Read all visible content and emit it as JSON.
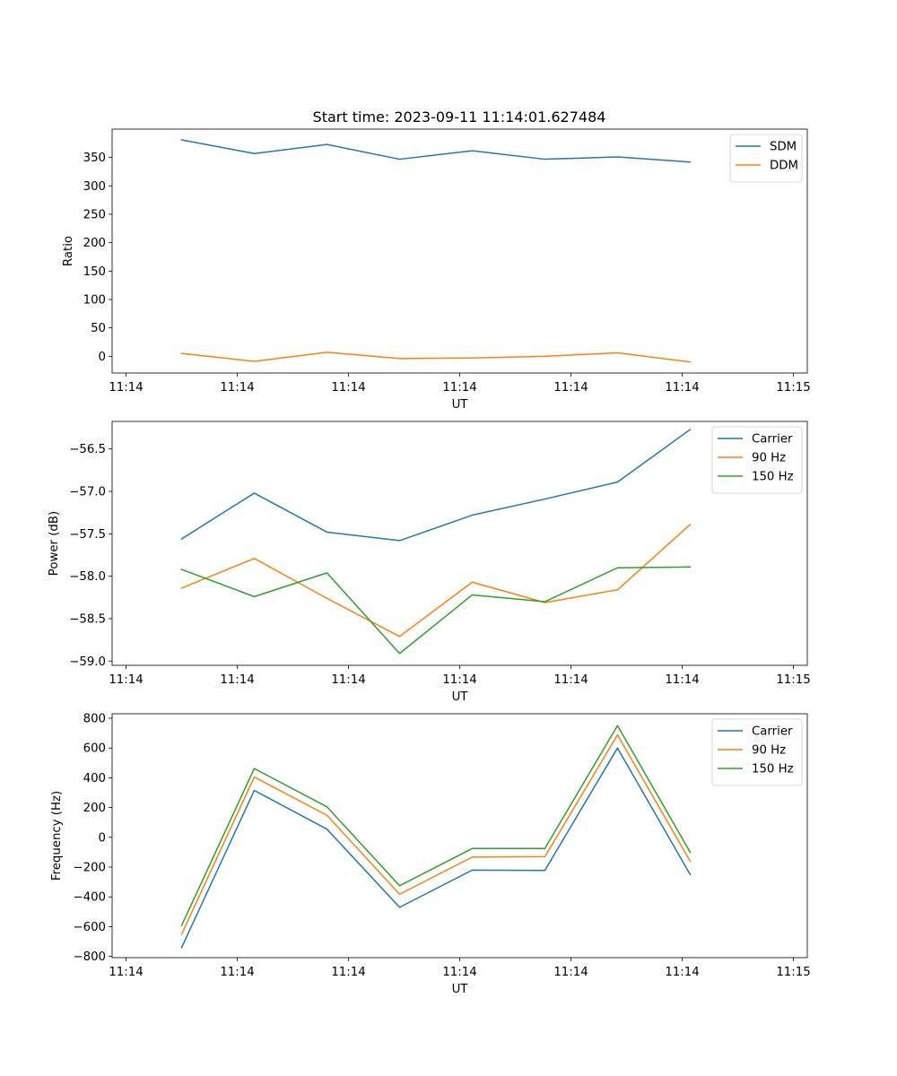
{
  "chart_data": [
    {
      "type": "line",
      "title": "Start time: 2023-09-11 11:14:01.627484",
      "xlabel": "UT",
      "ylabel": "Ratio",
      "xticks": [
        "11:14",
        "11:14",
        "11:14",
        "11:14",
        "11:14",
        "11:14",
        "11:15"
      ],
      "yticks": [
        0,
        50,
        100,
        150,
        200,
        250,
        300,
        350
      ],
      "ylim": [
        -29.5,
        400
      ],
      "legend_position": "upper-right",
      "x": [
        1,
        2,
        3,
        4,
        5,
        6,
        7,
        8
      ],
      "series": [
        {
          "name": "SDM",
          "color": "#1f77b4",
          "values": [
            381,
            357,
            373,
            347,
            362,
            347,
            351,
            342
          ]
        },
        {
          "name": "DDM",
          "color": "#ff7f0e",
          "values": [
            5,
            -9,
            7,
            -4,
            -3,
            0,
            6,
            -10
          ]
        }
      ]
    },
    {
      "type": "line",
      "title": "",
      "xlabel": "UT",
      "ylabel": "Power (dB)",
      "xticks": [
        "11:14",
        "11:14",
        "11:14",
        "11:14",
        "11:14",
        "11:14",
        "11:15"
      ],
      "yticks": [
        -59.0,
        -58.5,
        -58.0,
        -57.5,
        -57.0,
        -56.5
      ],
      "ylim": [
        -59.05,
        -56.175
      ],
      "legend_position": "upper-right",
      "x": [
        1,
        2,
        3,
        4,
        5,
        6,
        7,
        8
      ],
      "series": [
        {
          "name": "Carrier",
          "color": "#1f77b4",
          "values": [
            -57.56,
            -57.02,
            -57.48,
            -57.58,
            -57.28,
            -57.09,
            -56.89,
            -56.27
          ]
        },
        {
          "name": "90 Hz",
          "color": "#ff7f0e",
          "values": [
            -58.14,
            -57.79,
            -58.26,
            -58.71,
            -58.07,
            -58.31,
            -58.16,
            -57.39
          ]
        },
        {
          "name": "150 Hz",
          "color": "#2ca02c",
          "values": [
            -57.92,
            -58.24,
            -57.96,
            -58.91,
            -58.22,
            -58.3,
            -57.9,
            -57.89
          ]
        }
      ]
    },
    {
      "type": "line",
      "title": "",
      "xlabel": "UT",
      "ylabel": "Frequency (Hz)",
      "xticks": [
        "11:14",
        "11:14",
        "11:14",
        "11:14",
        "11:14",
        "11:14",
        "11:15"
      ],
      "yticks": [
        -800,
        -600,
        -400,
        -200,
        0,
        200,
        400,
        600,
        800
      ],
      "ylim": [
        -808,
        830
      ],
      "legend_position": "upper-right",
      "x": [
        1,
        2,
        3,
        4,
        5,
        6,
        7,
        8
      ],
      "series": [
        {
          "name": "Carrier",
          "color": "#1f77b4",
          "values": [
            -740,
            315,
            55,
            -470,
            -220,
            -222,
            600,
            -250
          ]
        },
        {
          "name": "90 Hz",
          "color": "#ff7f0e",
          "values": [
            -650,
            405,
            148,
            -382,
            -133,
            -130,
            688,
            -160
          ]
        },
        {
          "name": "150 Hz",
          "color": "#2ca02c",
          "values": [
            -592,
            462,
            205,
            -325,
            -75,
            -75,
            750,
            -100
          ]
        }
      ]
    }
  ]
}
